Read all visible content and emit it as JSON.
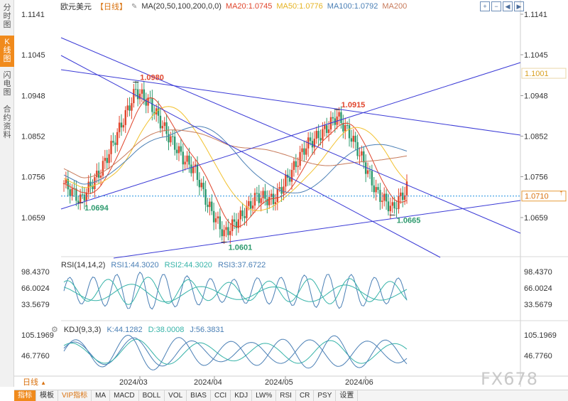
{
  "side_tabs": [
    {
      "label": "分时图",
      "active": false
    },
    {
      "label": "K线图",
      "active": true
    },
    {
      "label": "闪电图",
      "active": false
    },
    {
      "label": "合约资料",
      "active": false
    }
  ],
  "header": {
    "symbol": "欧元美元",
    "period": "【日线】",
    "indicator": "MA(20,50,100,200,0,0)",
    "ma": [
      {
        "label": "MA20:1.0745",
        "color": "#e0452c"
      },
      {
        "label": "MA50:1.0776",
        "color": "#f2c12e"
      },
      {
        "label": "MA100:1.0792",
        "color": "#4a7fb5"
      },
      {
        "label": "MA200",
        "color": "#c77a5a"
      }
    ],
    "tool_icons": [
      "zoom-in-icon",
      "zoom-out-icon",
      "scroll-left-icon",
      "scroll-right-icon"
    ]
  },
  "price_axis": {
    "ticks": [
      {
        "label": "1.1141",
        "value": 1.1141
      },
      {
        "label": "1.1045",
        "value": 1.1045
      },
      {
        "label": "1.0948",
        "value": 1.0948
      },
      {
        "label": "1.0852",
        "value": 1.0852
      },
      {
        "label": "1.0756",
        "value": 1.0756
      },
      {
        "label": "1.0659",
        "value": 1.0659
      }
    ],
    "current_price": "1.0710",
    "current_value": 1.071,
    "marker_price": "1.1001",
    "marker_value": 1.1001
  },
  "annotations": [
    {
      "label": "1.0980",
      "value": 1.098,
      "color": "#e0452c",
      "index": 35
    },
    {
      "label": "1.0915",
      "value": 1.0915,
      "color": "#e0452c",
      "index": 133
    },
    {
      "label": "1.0694",
      "value": 1.0694,
      "color": "#2e9a6e",
      "index": 8
    },
    {
      "label": "1.0601",
      "value": 1.0601,
      "color": "#2e9a6e",
      "index": 78
    },
    {
      "label": "1.0665",
      "value": 1.0665,
      "color": "#2e9a6e",
      "index": 160
    }
  ],
  "rsi": {
    "title": "RSI(14,14,2)",
    "labels": [
      {
        "text": "RSI1:44.3020",
        "color": "#4a7fb5"
      },
      {
        "text": "RSI2:44.3020",
        "color": "#36b3a8"
      },
      {
        "text": "RSI3:37.6722",
        "color": "#4a7fb5"
      }
    ],
    "ticks": [
      {
        "label": "98.4370",
        "value": 98.437
      },
      {
        "label": "66.0024",
        "value": 66.0024
      },
      {
        "label": "33.5679",
        "value": 33.5679
      }
    ]
  },
  "kdj": {
    "title": "KDJ(9,3,3)",
    "labels": [
      {
        "text": "K:44.1282",
        "color": "#4a7fb5"
      },
      {
        "text": "D:38.0008",
        "color": "#36b3a8"
      },
      {
        "text": "J:56.3831",
        "color": "#4a7fb5"
      }
    ],
    "ticks": [
      {
        "label": "105.1969",
        "value": 105.1969
      },
      {
        "label": "46.7760",
        "value": 46.776
      }
    ]
  },
  "date_axis": [
    "2024/03",
    "2024/04",
    "2024/05",
    "2024/06"
  ],
  "period_tab": "日线",
  "bottom_bar": [
    {
      "label": "指标",
      "active": true
    },
    {
      "label": "模板",
      "active": false
    },
    {
      "label": "VIP指标",
      "active": false,
      "vip": true
    },
    {
      "label": "MA",
      "active": false
    },
    {
      "label": "MACD",
      "active": false
    },
    {
      "label": "BOLL",
      "active": false
    },
    {
      "label": "VOL",
      "active": false
    },
    {
      "label": "BIAS",
      "active": false
    },
    {
      "label": "CCI",
      "active": false
    },
    {
      "label": "KDJ",
      "active": false
    },
    {
      "label": "LW%",
      "active": false
    },
    {
      "label": "RSI",
      "active": false
    },
    {
      "label": "CR",
      "active": false
    },
    {
      "label": "PSY",
      "active": false
    },
    {
      "label": "设置",
      "active": false
    }
  ],
  "watermark": "FX678",
  "colors": {
    "up": "#e0452c",
    "down": "#2e9a6e",
    "trendline": "#3a3ad6",
    "current_line": "#1f8fe0"
  }
}
